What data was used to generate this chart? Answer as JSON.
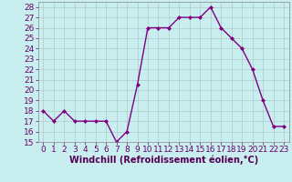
{
  "x": [
    0,
    1,
    2,
    3,
    4,
    5,
    6,
    7,
    8,
    9,
    10,
    11,
    12,
    13,
    14,
    15,
    16,
    17,
    18,
    19,
    20,
    21,
    22,
    23
  ],
  "y": [
    18,
    17,
    18,
    17,
    17,
    17,
    17,
    15,
    16,
    20.5,
    26,
    26,
    26,
    27,
    27,
    27,
    28,
    26,
    25,
    24,
    22,
    19,
    16.5,
    16.5
  ],
  "line_color": "#800080",
  "marker": "D",
  "marker_size": 2,
  "xlabel": "Windchill (Refroidissement éolien,°C)",
  "xlabel_fontsize": 7,
  "ylim": [
    15,
    28.5
  ],
  "xlim": [
    -0.5,
    23.5
  ],
  "yticks": [
    15,
    16,
    17,
    18,
    19,
    20,
    21,
    22,
    23,
    24,
    25,
    26,
    27,
    28
  ],
  "xticks": [
    0,
    1,
    2,
    3,
    4,
    5,
    6,
    7,
    8,
    9,
    10,
    11,
    12,
    13,
    14,
    15,
    16,
    17,
    18,
    19,
    20,
    21,
    22,
    23
  ],
  "background_color": "#c8eef0",
  "grid_color": "#b0c8c8",
  "tick_fontsize": 6.5,
  "linewidth": 1.0
}
